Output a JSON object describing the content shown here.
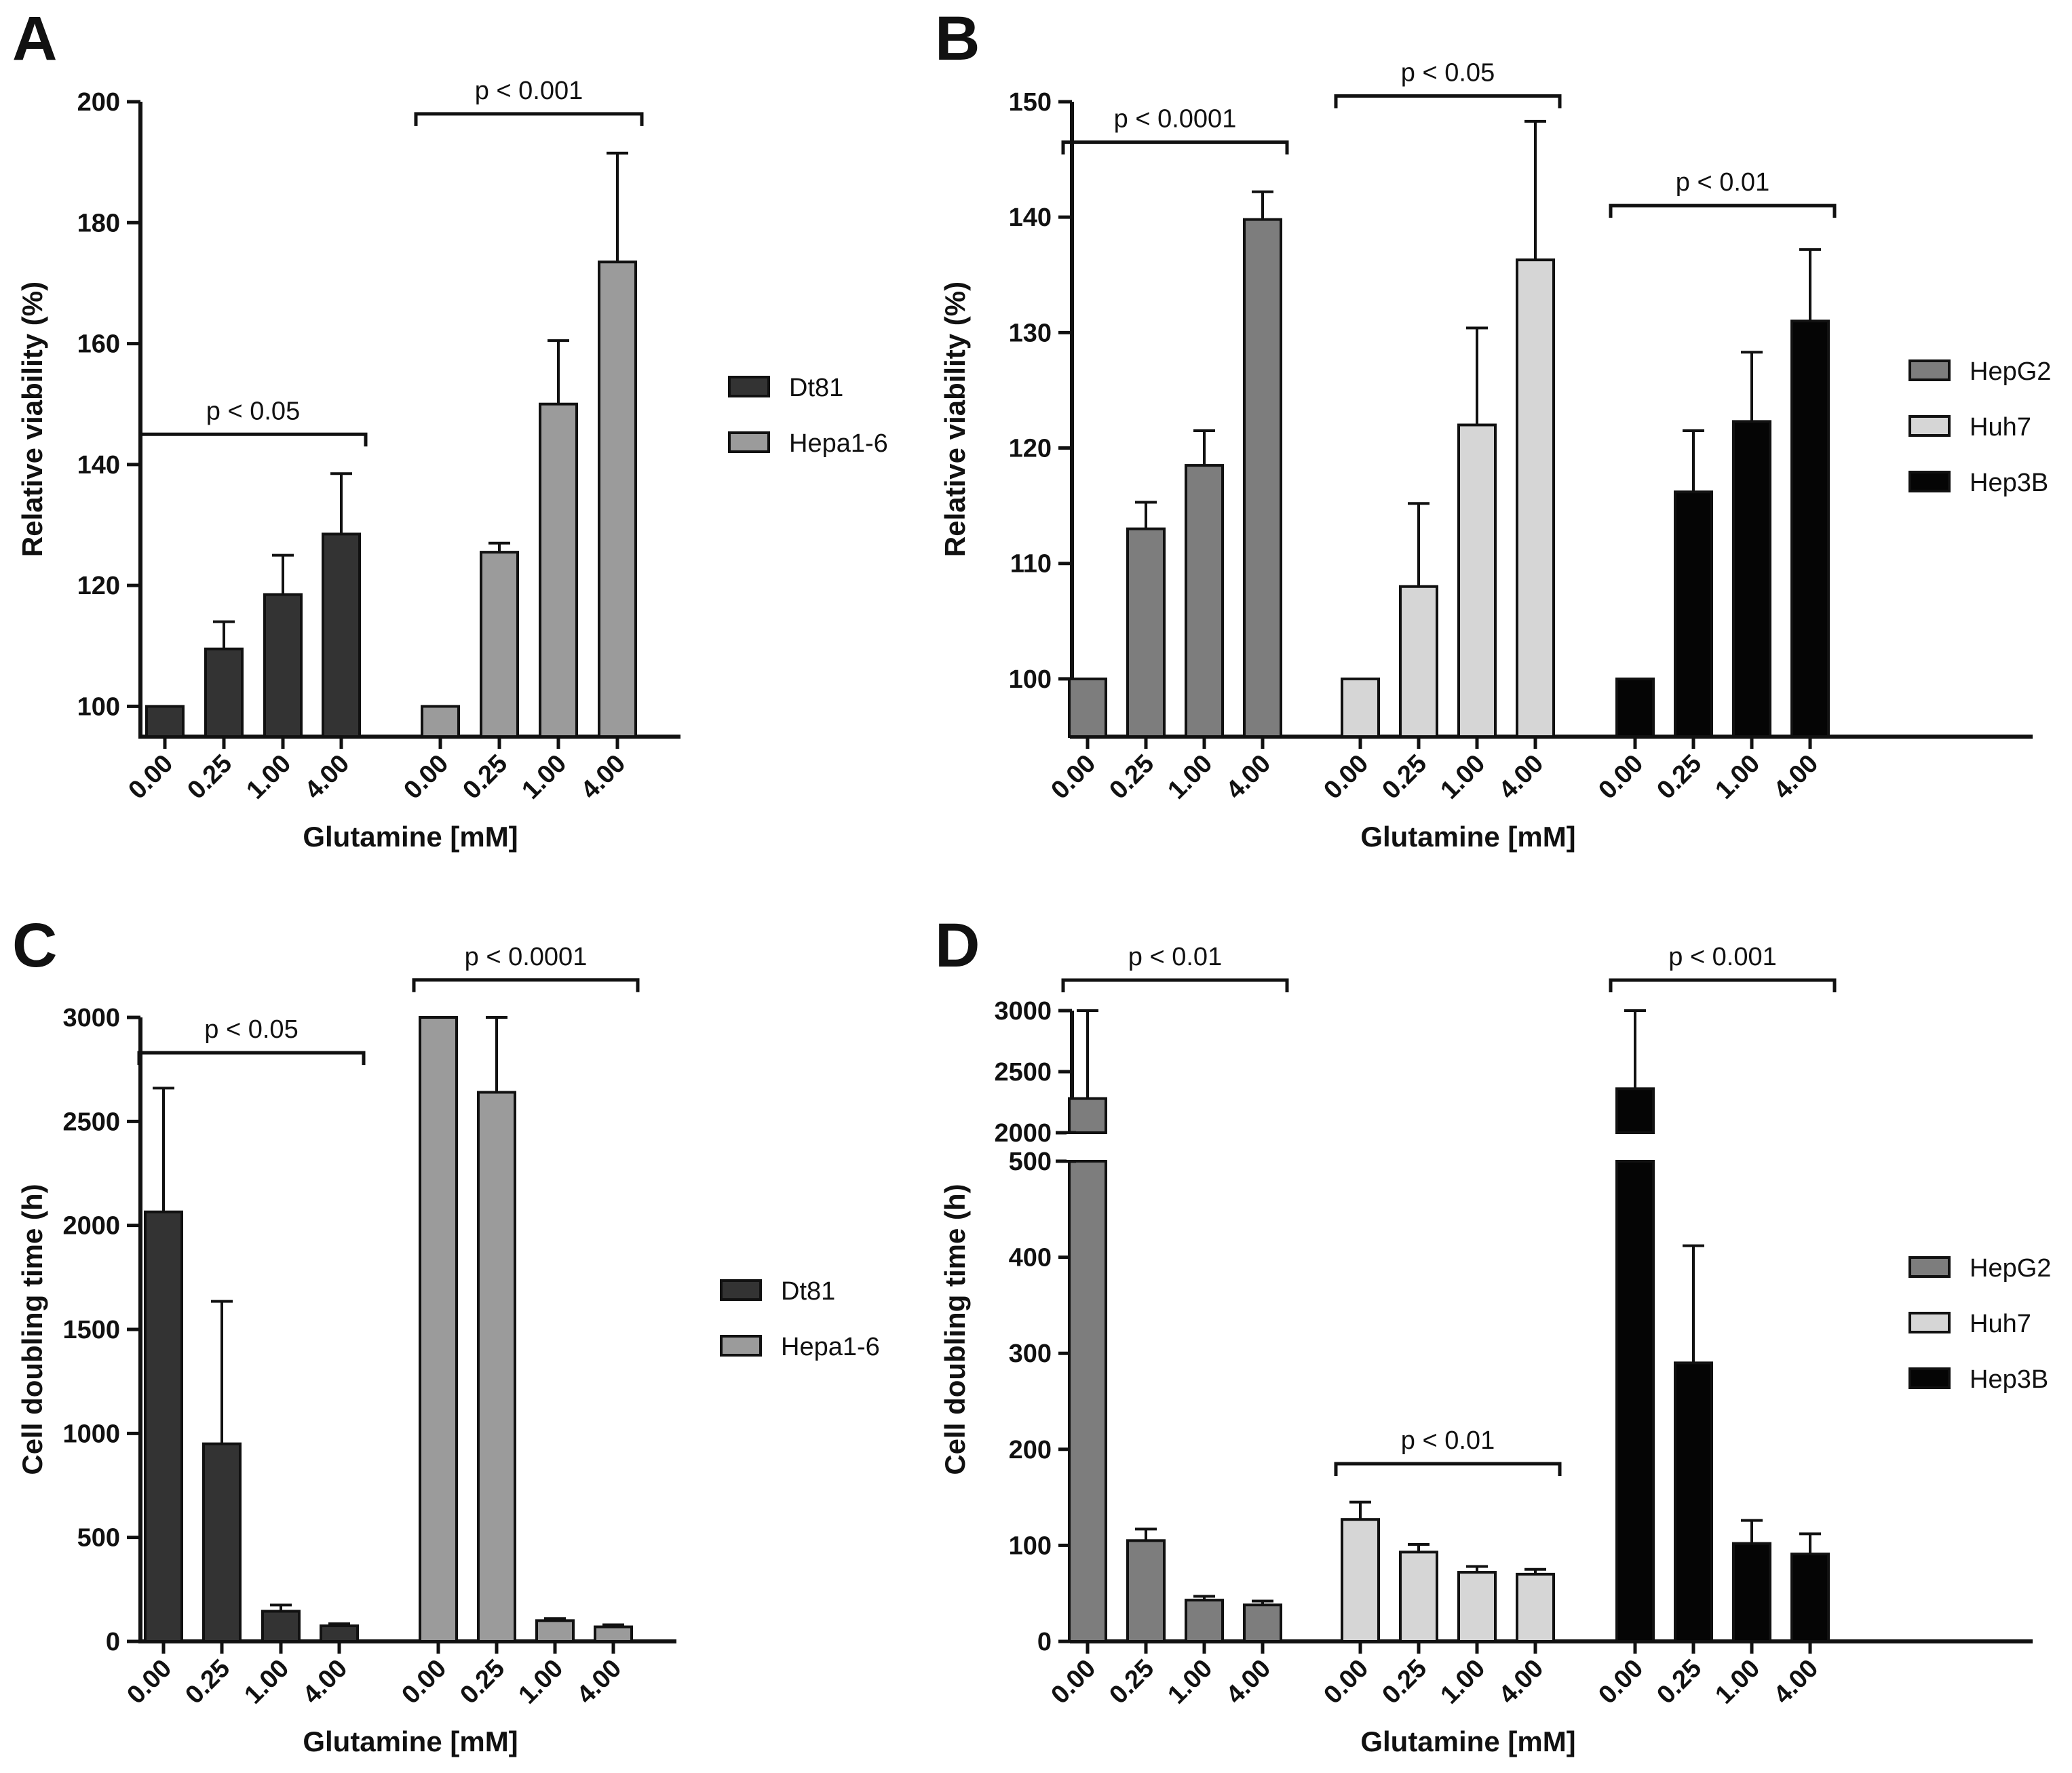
{
  "chart_data": [
    {
      "panel": "A",
      "type": "bar",
      "ylabel": "Relative viability (%)",
      "xlabel": "Glutamine [mM]",
      "ylim": [
        95,
        200
      ],
      "yticks": [
        "100",
        "120",
        "140",
        "160",
        "180",
        "200"
      ],
      "ytick_values": [
        100,
        120,
        140,
        160,
        180,
        200
      ],
      "categories": [
        "0.00",
        "0.25",
        "1.00",
        "4.00"
      ],
      "legend_position": "right",
      "series": [
        {
          "name": "Dt81",
          "color": "#333333",
          "values": [
            100,
            109.5,
            118.5,
            128.5
          ],
          "errors": [
            0,
            4.5,
            6.5,
            10
          ]
        },
        {
          "name": "Hepa1-6",
          "color": "#9b9b9b",
          "values": [
            100,
            125.5,
            150,
            173.5
          ],
          "errors": [
            0,
            1.5,
            10.5,
            18
          ]
        }
      ],
      "annotations": [
        {
          "text": "p < 0.05",
          "series": 0,
          "level": 145
        },
        {
          "text": "p < 0.001",
          "series": 1,
          "level": 198
        }
      ]
    },
    {
      "panel": "B",
      "type": "bar",
      "ylabel": "Relative viability (%)",
      "xlabel": "Glutamine [mM]",
      "ylim": [
        95,
        150
      ],
      "yticks": [
        "100",
        "110",
        "120",
        "130",
        "140",
        "150"
      ],
      "ytick_values": [
        100,
        110,
        120,
        130,
        140,
        150
      ],
      "categories": [
        "0.00",
        "0.25",
        "1.00",
        "4.00"
      ],
      "legend_position": "right",
      "series": [
        {
          "name": "HepG2",
          "color": "#7d7d7d",
          "values": [
            100,
            113,
            118.5,
            139.8
          ],
          "errors": [
            0,
            2.3,
            3,
            2.4
          ]
        },
        {
          "name": "Huh7",
          "color": "#d6d6d6",
          "values": [
            100,
            108,
            122,
            136.3
          ],
          "errors": [
            0,
            7.2,
            8.4,
            12
          ]
        },
        {
          "name": "Hep3B",
          "color": "#050505",
          "values": [
            100,
            116.2,
            122.3,
            131
          ],
          "errors": [
            0,
            5.3,
            6,
            6.2
          ]
        }
      ],
      "annotations": [
        {
          "text": "p < 0.0001",
          "series": 0,
          "level": 146.5
        },
        {
          "text": "p < 0.05",
          "series": 1,
          "level": 150.5
        },
        {
          "text": "p < 0.01",
          "series": 2,
          "level": 141
        }
      ]
    },
    {
      "panel": "C",
      "type": "bar",
      "ylabel": "Cell doubling time (h)",
      "xlabel": "Glutamine [mM]",
      "ylim": [
        0,
        3000
      ],
      "yticks": [
        "0",
        "500",
        "1000",
        "1500",
        "2000",
        "2500",
        "3000"
      ],
      "ytick_values": [
        0,
        500,
        1000,
        1500,
        2000,
        2500,
        3000
      ],
      "categories": [
        "0.00",
        "0.25",
        "1.00",
        "4.00"
      ],
      "legend_position": "right",
      "series": [
        {
          "name": "Dt81",
          "color": "#333333",
          "values": [
            2065,
            950,
            145,
            75
          ],
          "errors": [
            595,
            685,
            30,
            10
          ]
        },
        {
          "name": "Hepa1-6",
          "color": "#9b9b9b",
          "values": [
            3000,
            2640,
            100,
            70
          ],
          "errors": [
            0,
            360,
            10,
            10
          ]
        }
      ],
      "annotations": [
        {
          "text": "p < 0.05",
          "series": 0,
          "level": 2830
        },
        {
          "text": "p < 0.0001",
          "series": 1,
          "level": 3180
        }
      ]
    },
    {
      "panel": "D",
      "type": "bar",
      "ylabel": "Cell doubling time (h)",
      "xlabel": "Glutamine [mM]",
      "ylim": [
        0,
        3000
      ],
      "axis_break": [
        500,
        2000
      ],
      "yticks": [
        "0",
        "100",
        "200",
        "300",
        "400",
        "500",
        "2000",
        "2500",
        "3000"
      ],
      "ytick_values": [
        0,
        100,
        200,
        300,
        400,
        500,
        2000,
        2500,
        3000
      ],
      "categories": [
        "0.00",
        "0.25",
        "1.00",
        "4.00"
      ],
      "legend_position": "right",
      "series": [
        {
          "name": "HepG2",
          "color": "#7d7d7d",
          "values": [
            2280,
            105,
            43,
            38
          ],
          "errors": [
            720,
            12,
            4,
            4
          ]
        },
        {
          "name": "Huh7",
          "color": "#d6d6d6",
          "values": [
            127,
            93,
            72,
            70
          ],
          "errors": [
            18,
            8,
            6,
            5
          ]
        },
        {
          "name": "Hep3B",
          "color": "#050505",
          "values": [
            2360,
            290,
            102,
            91
          ],
          "errors": [
            640,
            122,
            24,
            21
          ]
        }
      ],
      "annotations": [
        {
          "text": "p < 0.01",
          "series": 0,
          "level": 3250
        },
        {
          "text": "p < 0.01",
          "series": 1,
          "level": 185
        },
        {
          "text": "p < 0.001",
          "series": 2,
          "level": 3250
        }
      ]
    }
  ]
}
